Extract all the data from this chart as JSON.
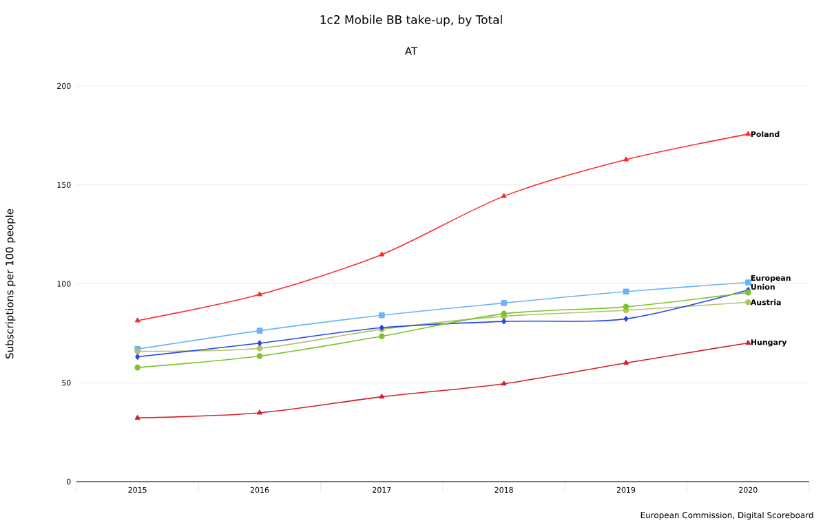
{
  "chart_data": {
    "type": "line",
    "title": "1c2 Mobile BB take-up, by Total",
    "subtitle": "AT",
    "ylabel": "Subscriptions per 100 people",
    "annotations": [
      "European Commission, Digital Scoreboard"
    ],
    "categories": [
      "2015",
      "2016",
      "2017",
      "2018",
      "2019",
      "2020"
    ],
    "ylim": [
      0,
      200
    ],
    "yticks": [
      0,
      50,
      100,
      150,
      200
    ],
    "grid": "y",
    "series": [
      {
        "name": "Poland",
        "color": "#ff2a2a",
        "marker": "triangle",
        "values": [
          81.4,
          94.6,
          114.8,
          144.3,
          162.8,
          175.7
        ]
      },
      {
        "name": "European Union",
        "color": "#6ab4f5",
        "marker": "square",
        "values": [
          67.0,
          76.3,
          84.1,
          90.3,
          96.1,
          100.7
        ]
      },
      {
        "name": "Austria",
        "color": "#b2c26a",
        "marker": "circle",
        "values": [
          65.9,
          67.4,
          77.0,
          83.6,
          86.6,
          90.7
        ]
      },
      {
        "color": "#2646e8",
        "marker": "diamond",
        "values": [
          63.1,
          70.0,
          77.8,
          81.0,
          82.3,
          96.9
        ]
      },
      {
        "color": "#7cc42a",
        "marker": "circle",
        "values": [
          57.7,
          63.5,
          73.5,
          84.9,
          88.4,
          95.6
        ]
      },
      {
        "name": "Hungary",
        "color": "#d0202a",
        "marker": "triangle",
        "values": [
          32.2,
          34.8,
          42.9,
          49.5,
          60.0,
          70.1
        ]
      }
    ]
  }
}
